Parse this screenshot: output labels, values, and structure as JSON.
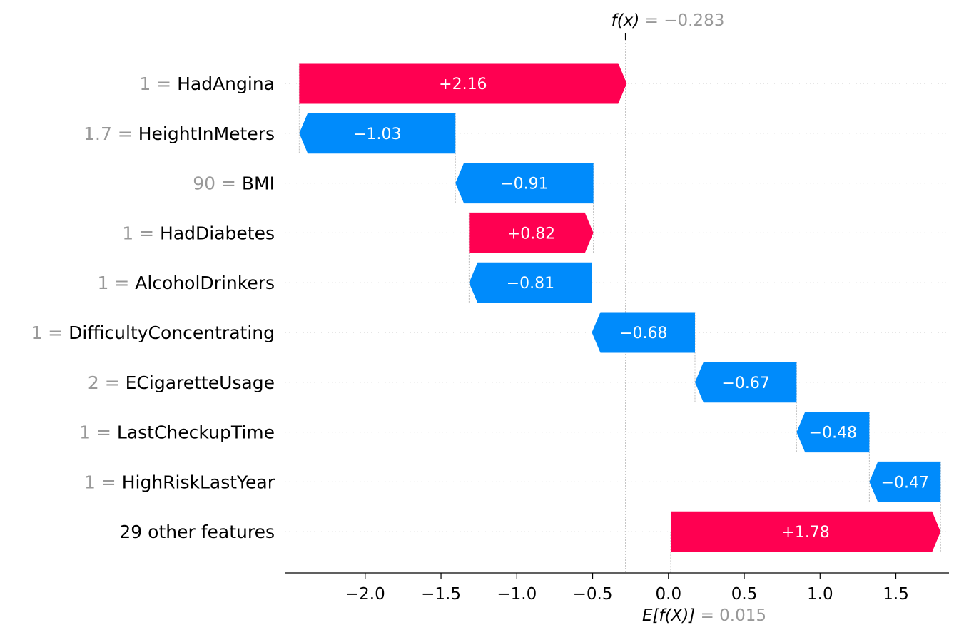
{
  "chart_data": {
    "type": "waterfall",
    "base_value": 0.015,
    "output_value": -0.283,
    "top_annotation": {
      "func": "f(x)",
      "eq": "=",
      "value": "−0.283"
    },
    "bottom_annotation": {
      "func": "E[f(X)]",
      "eq": "=",
      "value": "0.015"
    },
    "features": [
      {
        "value_text": "1",
        "eq": "=",
        "name": "HadAngina",
        "contribution": 2.16,
        "label": "+2.16"
      },
      {
        "value_text": "1.7",
        "eq": "=",
        "name": "HeightInMeters",
        "contribution": -1.03,
        "label": "−1.03"
      },
      {
        "value_text": "90",
        "eq": "=",
        "name": "BMI",
        "contribution": -0.91,
        "label": "−0.91"
      },
      {
        "value_text": "1",
        "eq": "=",
        "name": "HadDiabetes",
        "contribution": 0.82,
        "label": "+0.82"
      },
      {
        "value_text": "1",
        "eq": "=",
        "name": "AlcoholDrinkers",
        "contribution": -0.81,
        "label": "−0.81"
      },
      {
        "value_text": "1",
        "eq": "=",
        "name": "DifficultyConcentrating",
        "contribution": -0.68,
        "label": "−0.68"
      },
      {
        "value_text": "2",
        "eq": "=",
        "name": "ECigaretteUsage",
        "contribution": -0.67,
        "label": "−0.67"
      },
      {
        "value_text": "1",
        "eq": "=",
        "name": "LastCheckupTime",
        "contribution": -0.48,
        "label": "−0.48"
      },
      {
        "value_text": "1",
        "eq": "=",
        "name": "HighRiskLastYear",
        "contribution": -0.47,
        "label": "−0.47"
      },
      {
        "value_text": "",
        "eq": "",
        "name": "29 other features",
        "contribution": 1.78,
        "label": "+1.78"
      }
    ],
    "xticks": [
      -2.0,
      -1.5,
      -1.0,
      -0.5,
      0.0,
      0.5,
      1.0,
      1.5
    ],
    "xtick_labels": [
      "−2.0",
      "−1.5",
      "−1.0",
      "−0.5",
      "0.0",
      "0.5",
      "1.0",
      "1.5"
    ],
    "xlim": [
      -2.5,
      1.83
    ],
    "colors": {
      "positive": "#ff0051",
      "negative": "#008bfb",
      "muted": "#999999",
      "grid": "#cccccc"
    }
  }
}
